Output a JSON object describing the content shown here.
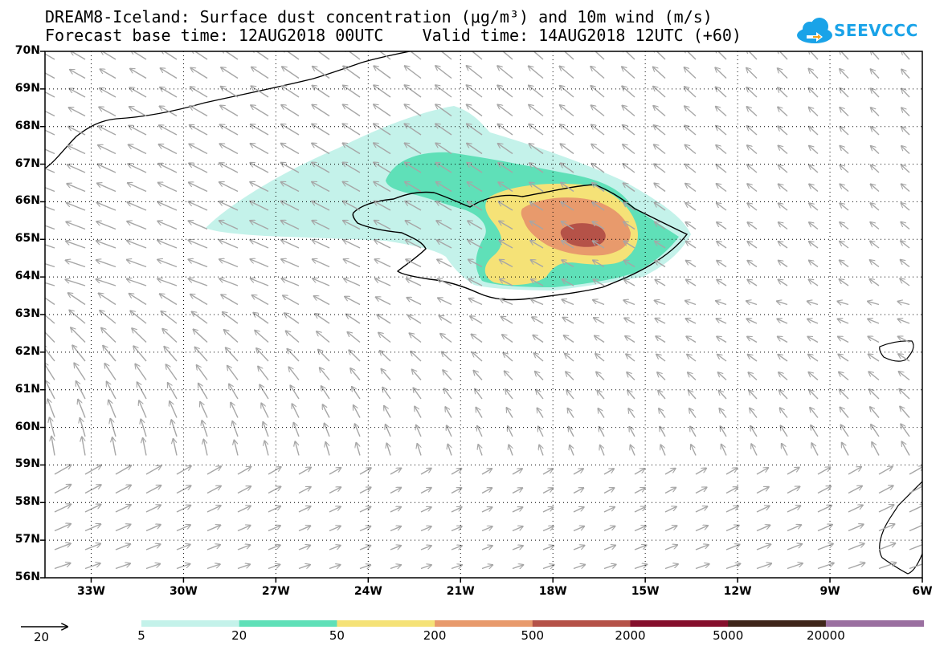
{
  "title": {
    "line1": "DREAM8-Iceland: Surface dust concentration (μg/m³) and 10m wind (m/s)",
    "line2": "Forecast base time: 12AUG2018 00UTC    Valid time: 14AUG2018 12UTC (+60)"
  },
  "logo": {
    "text": "SEEVCCC",
    "icon": "cloud-icon"
  },
  "axes": {
    "lat_labels": [
      "70N",
      "69N",
      "68N",
      "67N",
      "66N",
      "65N",
      "64N",
      "63N",
      "62N",
      "61N",
      "60N",
      "59N",
      "58N",
      "57N",
      "56N"
    ],
    "lon_labels": [
      "33W",
      "30W",
      "27W",
      "24W",
      "21W",
      "18W",
      "15W",
      "12W",
      "9W",
      "6W"
    ],
    "lat_range": [
      56,
      70
    ],
    "lon_range": [
      -34.5,
      -6
    ],
    "grid": "dotted"
  },
  "wind_reference": {
    "value": "20",
    "unit": "m/s"
  },
  "colorbar": {
    "labels": [
      "5",
      "20",
      "50",
      "200",
      "500",
      "2000",
      "5000",
      "20000"
    ],
    "colors": [
      "#c4f2ea",
      "#5fe0b8",
      "#f5e277",
      "#e89a6c",
      "#b55248",
      "#850f2c",
      "#3f261a",
      "#9a6fa0"
    ]
  },
  "colors": {
    "coast": "#000000",
    "wind_arrow": "#a6a6a6",
    "logo": "#1aa3e8"
  }
}
